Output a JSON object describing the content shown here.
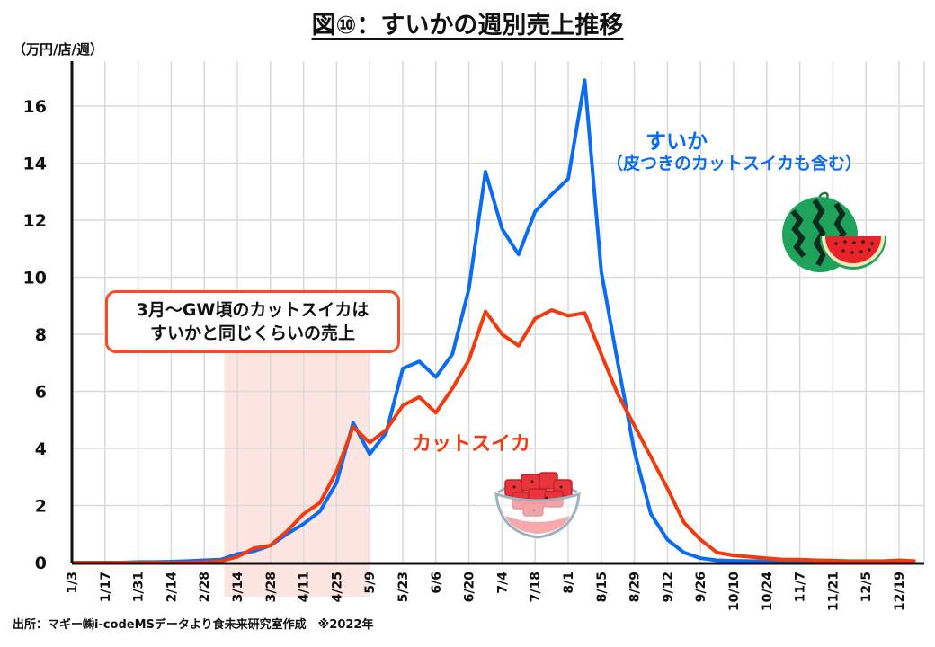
{
  "title": "図⑩：すいかの週別売上推移",
  "unit_label": "（万円/店/週）",
  "source_note": "出所：マギー㈱i-codeMSデータより食未来研究室作成　※2022年",
  "annotation_box": {
    "line1": "3月～GW頃のカットスイカは",
    "line2": "すいかと同じくらいの売上"
  },
  "labels": {
    "suika": "すいか",
    "suika_sub": "（皮つきのカットスイカも含む）",
    "cut": "カットスイカ"
  },
  "colors": {
    "suika": "#0a6cf2",
    "cut": "#f03a10",
    "highlight": "#fde6e1",
    "grid": "#d9d9d9",
    "axis": "#111111"
  },
  "icons": [
    "watermelon-icon",
    "cut-watermelon-bowl-icon"
  ],
  "chart_data": {
    "type": "line",
    "title": "図⑩：すいかの週別売上推移",
    "ylabel": "（万円/店/週）",
    "xlabel": "",
    "ylim": [
      0,
      17
    ],
    "yticks": [
      0,
      2,
      4,
      6,
      8,
      10,
      12,
      14,
      16
    ],
    "grid": true,
    "x": [
      "1/3",
      "1/10",
      "1/17",
      "1/24",
      "1/31",
      "2/7",
      "2/14",
      "2/21",
      "2/28",
      "3/7",
      "3/14",
      "3/21",
      "3/28",
      "4/4",
      "4/11",
      "4/18",
      "4/25",
      "5/2",
      "5/9",
      "5/16",
      "5/23",
      "5/30",
      "6/6",
      "6/13",
      "6/20",
      "6/27",
      "7/4",
      "7/11",
      "7/18",
      "7/25",
      "8/1",
      "8/8",
      "8/15",
      "8/22",
      "8/29",
      "9/5",
      "9/12",
      "9/19",
      "9/26",
      "10/3",
      "10/10",
      "10/17",
      "10/24",
      "10/31",
      "11/7",
      "11/14",
      "11/21",
      "11/28",
      "12/5",
      "12/12",
      "12/19",
      "12/26"
    ],
    "xtick_labels": [
      "1/3",
      "1/17",
      "1/31",
      "2/14",
      "2/28",
      "3/14",
      "3/28",
      "4/11",
      "4/25",
      "5/9",
      "5/23",
      "6/6",
      "6/20",
      "7/4",
      "7/18",
      "8/1",
      "8/15",
      "8/29",
      "9/12",
      "9/26",
      "10/10",
      "10/24",
      "11/7",
      "11/21",
      "12/5",
      "12/19"
    ],
    "highlight_range": [
      "3/7",
      "5/16"
    ],
    "series": [
      {
        "name": "すいか",
        "values": [
          0,
          0,
          0,
          0,
          0.02,
          0.02,
          0.03,
          0.05,
          0.08,
          0.1,
          0.3,
          0.4,
          0.6,
          1.0,
          1.35,
          1.8,
          2.8,
          4.9,
          3.8,
          4.55,
          6.8,
          7.05,
          6.5,
          7.3,
          9.6,
          13.7,
          11.7,
          10.8,
          12.3,
          12.9,
          13.45,
          16.9,
          10.2,
          7.0,
          3.9,
          1.7,
          0.8,
          0.35,
          0.15,
          0.08,
          0.06,
          0.05,
          0.04,
          0.03,
          0.02,
          0.02,
          0.02,
          0.02,
          0.02,
          0.02,
          0.02,
          0.02
        ]
      },
      {
        "name": "カットスイカ",
        "values": [
          0,
          0,
          0,
          0,
          0,
          0,
          0,
          0,
          0.02,
          0.05,
          0.2,
          0.5,
          0.6,
          1.1,
          1.7,
          2.1,
          3.2,
          4.75,
          4.2,
          4.65,
          5.5,
          5.8,
          5.25,
          6.1,
          7.1,
          8.8,
          8.0,
          7.6,
          8.55,
          8.85,
          8.65,
          8.75,
          7.3,
          5.9,
          4.8,
          3.7,
          2.6,
          1.4,
          0.8,
          0.35,
          0.25,
          0.2,
          0.15,
          0.1,
          0.1,
          0.08,
          0.07,
          0.05,
          0.05,
          0.05,
          0.08,
          0.05
        ]
      }
    ]
  }
}
